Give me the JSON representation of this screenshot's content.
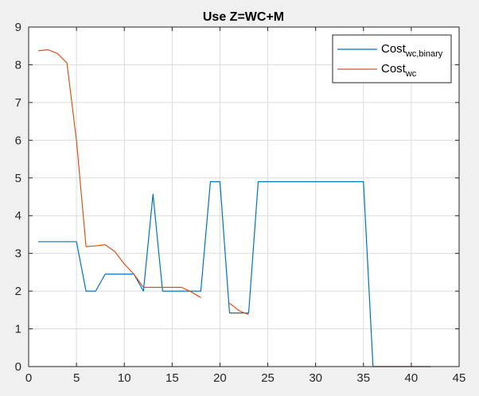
{
  "chart_data": {
    "type": "line",
    "title": "Use Z=WC+M",
    "xlabel": "",
    "ylabel": "",
    "xlim": [
      0,
      45
    ],
    "ylim": [
      0,
      9
    ],
    "xticks": [
      0,
      5,
      10,
      15,
      20,
      25,
      30,
      35,
      40,
      45
    ],
    "yticks": [
      0,
      1,
      2,
      3,
      4,
      5,
      6,
      7,
      8,
      9
    ],
    "grid": true,
    "legend_position": "top-right",
    "series": [
      {
        "name_main": "Cost",
        "name_sub": "wc,binary",
        "color": "#0072bd",
        "points": [
          [
            1,
            3.31
          ],
          [
            2,
            3.31
          ],
          [
            3,
            3.31
          ],
          [
            4,
            3.31
          ],
          [
            5,
            3.31
          ],
          [
            6,
            2.0
          ],
          [
            7,
            2.0
          ],
          [
            8,
            2.45
          ],
          [
            9,
            2.45
          ],
          [
            10,
            2.45
          ],
          [
            11,
            2.45
          ],
          [
            12,
            2.0
          ],
          [
            13,
            4.57
          ],
          [
            14,
            2.0
          ],
          [
            15,
            2.0
          ],
          [
            16,
            2.0
          ],
          [
            17,
            2.0
          ],
          [
            18,
            2.0
          ],
          [
            19,
            4.9
          ],
          [
            20,
            4.9
          ],
          [
            21,
            1.42
          ],
          [
            22,
            1.42
          ],
          [
            23,
            1.42
          ],
          [
            24,
            4.9
          ],
          [
            25,
            4.9
          ],
          [
            26,
            4.9
          ],
          [
            27,
            4.9
          ],
          [
            28,
            4.9
          ],
          [
            29,
            4.9
          ],
          [
            30,
            4.9
          ],
          [
            31,
            4.9
          ],
          [
            32,
            4.9
          ],
          [
            33,
            4.9
          ],
          [
            34,
            4.9
          ],
          [
            35,
            4.9
          ],
          [
            36,
            0.0
          ],
          [
            37,
            0.0
          ],
          [
            38,
            0.0
          ],
          [
            39,
            0.0
          ],
          [
            40,
            0.0
          ],
          [
            41,
            0.0
          ],
          [
            42,
            0.0
          ]
        ]
      },
      {
        "name_main": "Cost",
        "name_sub": "wc",
        "color": "#d95319",
        "segments": [
          [
            [
              1,
              8.37
            ],
            [
              2,
              8.4
            ],
            [
              3,
              8.3
            ],
            [
              4,
              8.05
            ],
            [
              5,
              6.0
            ],
            [
              6,
              3.18
            ],
            [
              7,
              3.2
            ],
            [
              8,
              3.23
            ],
            [
              9,
              3.05
            ],
            [
              10,
              2.72
            ],
            [
              11,
              2.45
            ],
            [
              12,
              2.1
            ],
            [
              13,
              2.1
            ],
            [
              14,
              2.1
            ],
            [
              15,
              2.1
            ],
            [
              16,
              2.1
            ],
            [
              17,
              1.98
            ],
            [
              18,
              1.83
            ]
          ],
          [
            [
              21,
              1.68
            ],
            [
              22,
              1.48
            ],
            [
              23,
              1.38
            ]
          ],
          [
            [
              36,
              0.0
            ],
            [
              37,
              0.0
            ],
            [
              38,
              0.0
            ],
            [
              39,
              0.0
            ],
            [
              40,
              0.0
            ],
            [
              41,
              0.0
            ],
            [
              42,
              0.0
            ]
          ]
        ]
      }
    ]
  }
}
